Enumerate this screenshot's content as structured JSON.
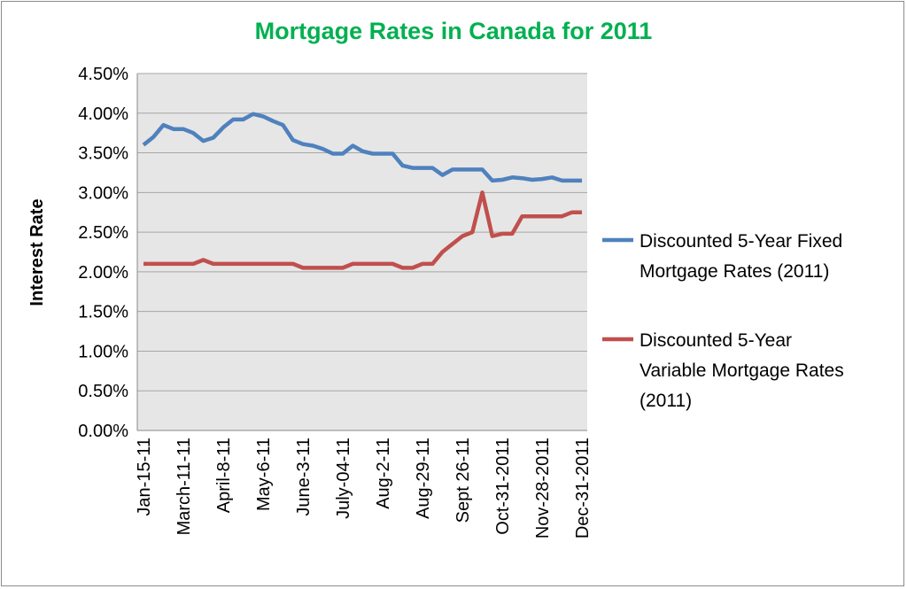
{
  "chart_data": {
    "type": "line",
    "title": "Mortgage Rates in Canada for 2011",
    "xlabel": "",
    "ylabel": "Interest Rate",
    "ylim": [
      0,
      4.5
    ],
    "y_ticks": [
      "0.00%",
      "0.50%",
      "1.00%",
      "1.50%",
      "2.00%",
      "2.50%",
      "3.00%",
      "3.50%",
      "4.00%",
      "4.50%"
    ],
    "x_tick_labels": [
      "Jan-15-11",
      "March-11-11",
      "April-8-11",
      "May-6-11",
      "June-3-11",
      "July-04-11",
      "Aug-2-11",
      "Aug-29-11",
      "Sept 26-11",
      "Oct-31-2011",
      "Nov-28-2011",
      "Dec-31-2011"
    ],
    "x_tick_every": 4,
    "grid": true,
    "legend_position": "right",
    "colors": {
      "title": "#00b050",
      "plot_bg": "#e6e6e6",
      "grid": "#a6a6a6"
    },
    "series": [
      {
        "name": "Discounted 5-Year Fixed Mortgage Rates (2011)",
        "legend_lines": [
          "Discounted 5-Year Fixed",
          "Mortgage Rates (2011)"
        ],
        "color": "#4f81bd",
        "values": [
          3.6,
          3.7,
          3.85,
          3.8,
          3.8,
          3.75,
          3.65,
          3.69,
          3.82,
          3.92,
          3.92,
          3.99,
          3.96,
          3.9,
          3.85,
          3.66,
          3.61,
          3.59,
          3.55,
          3.49,
          3.49,
          3.59,
          3.52,
          3.49,
          3.49,
          3.49,
          3.34,
          3.31,
          3.31,
          3.31,
          3.22,
          3.29,
          3.29,
          3.29,
          3.29,
          3.15,
          3.16,
          3.19,
          3.18,
          3.16,
          3.17,
          3.19,
          3.15,
          3.15,
          3.15
        ]
      },
      {
        "name": "Discounted 5-Year Variable Mortgage Rates (2011)",
        "legend_lines": [
          "Discounted 5-Year",
          "Variable Mortgage Rates",
          "(2011)"
        ],
        "color": "#c0504d",
        "values": [
          2.1,
          2.1,
          2.1,
          2.1,
          2.1,
          2.1,
          2.15,
          2.1,
          2.1,
          2.1,
          2.1,
          2.1,
          2.1,
          2.1,
          2.1,
          2.1,
          2.05,
          2.05,
          2.05,
          2.05,
          2.05,
          2.1,
          2.1,
          2.1,
          2.1,
          2.1,
          2.05,
          2.05,
          2.1,
          2.1,
          2.25,
          2.35,
          2.45,
          2.5,
          3.0,
          2.45,
          2.48,
          2.48,
          2.7,
          2.7,
          2.7,
          2.7,
          2.7,
          2.75,
          2.75
        ]
      }
    ]
  }
}
